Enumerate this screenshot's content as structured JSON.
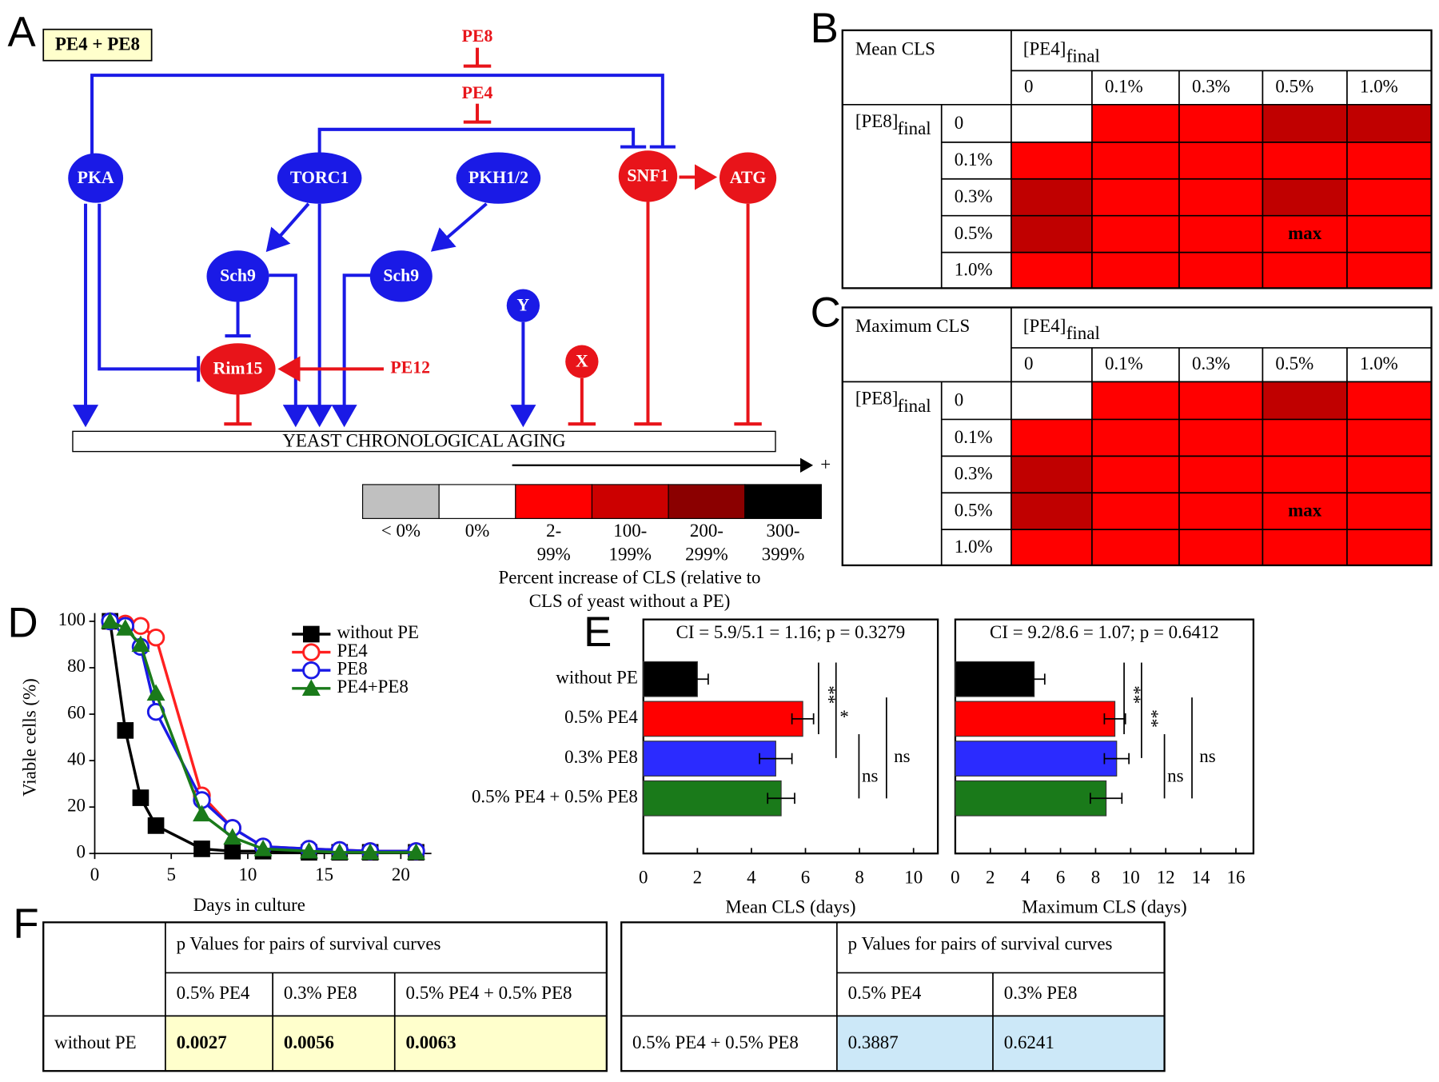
{
  "panel_labels": [
    "A",
    "B",
    "C",
    "D",
    "E",
    "F"
  ],
  "diagram": {
    "tag": "PE4 + PE8",
    "nodes": [
      "PKA",
      "TORC1",
      "PKH1/2",
      "SNF1",
      "ATG",
      "Sch9",
      "Sch9",
      "Y",
      "X",
      "Rim15"
    ],
    "compounds": [
      "PE8",
      "PE4",
      "PE12"
    ],
    "outcome": "YEAST CHRONOLOGICAL AGING",
    "direction": "+"
  },
  "scale": {
    "labels": [
      [
        "< 0%"
      ],
      [
        "0%"
      ],
      [
        "2-",
        "99%"
      ],
      [
        "100-",
        "199%"
      ],
      [
        "200-",
        "299%"
      ],
      [
        "300-",
        "399%"
      ]
    ],
    "colors": [
      "#c0c0c0",
      "#ffffff",
      "#ff0000",
      "#cc0000",
      "#8b0000",
      "#000000"
    ],
    "caption": [
      "Percent increase of CLS (relative to",
      "CLS of yeast without a PE)"
    ]
  },
  "heatmaps": [
    {
      "title": "Mean CLS",
      "col_header": "[PE4]",
      "row_header": "[PE8]",
      "subscript": "final",
      "columns": [
        "0",
        "0.1%",
        "0.3%",
        "0.5%",
        "1.0%"
      ],
      "rows": [
        "0",
        "0.1%",
        "0.3%",
        "0.5%",
        "1.0%"
      ],
      "cells": [
        [
          "#ffffff",
          "#ff0000",
          "#ff0000",
          "#c00000",
          "#c00000"
        ],
        [
          "#ff0000",
          "#ff0000",
          "#ff0000",
          "#ff0000",
          "#ff0000"
        ],
        [
          "#c00000",
          "#ff0000",
          "#ff0000",
          "#c00000",
          "#ff0000"
        ],
        [
          "#c00000",
          "#ff0000",
          "#ff0000",
          {
            "color": "#ff0000",
            "label": "max"
          },
          "#ff0000"
        ],
        [
          "#ff0000",
          "#ff0000",
          "#ff0000",
          "#ff0000",
          "#ff0000"
        ]
      ]
    },
    {
      "title": "Maximum CLS",
      "col_header": "[PE4]",
      "row_header": "[PE8]",
      "subscript": "final",
      "columns": [
        "0",
        "0.1%",
        "0.3%",
        "0.5%",
        "1.0%"
      ],
      "rows": [
        "0",
        "0.1%",
        "0.3%",
        "0.5%",
        "1.0%"
      ],
      "cells": [
        [
          "#ffffff",
          "#ff0000",
          "#ff0000",
          "#c00000",
          "#ff0000"
        ],
        [
          "#ff0000",
          "#ff0000",
          "#ff0000",
          "#ff0000",
          "#ff0000"
        ],
        [
          "#c00000",
          "#ff0000",
          "#ff0000",
          "#ff0000",
          "#ff0000"
        ],
        [
          "#c00000",
          "#ff0000",
          "#ff0000",
          {
            "color": "#ff0000",
            "label": "max"
          },
          "#ff0000"
        ],
        [
          "#ff0000",
          "#ff0000",
          "#ff0000",
          "#ff0000",
          "#ff0000"
        ]
      ]
    }
  ],
  "chart_data": [
    {
      "type": "line",
      "xlabel": "Days in culture",
      "ylabel": "Viable cells (%)",
      "x": [
        1,
        2,
        3,
        4,
        7,
        9,
        11,
        14,
        16,
        18,
        21
      ],
      "series": [
        {
          "name": "without PE",
          "color": "#000000",
          "marker": "square",
          "values": [
            100,
            53,
            24,
            12,
            2,
            1,
            1,
            0.5,
            0.5,
            0.5,
            0.5
          ]
        },
        {
          "name": "PE4",
          "color": "#ff2020",
          "marker": "open-circle",
          "values": [
            100,
            99,
            98,
            93,
            25,
            11,
            3,
            2,
            1.5,
            1,
            1
          ]
        },
        {
          "name": "PE8",
          "color": "#1a1ae6",
          "marker": "open-circle",
          "values": [
            100,
            98,
            89,
            61,
            23,
            11,
            3,
            2,
            1.5,
            1,
            1
          ]
        },
        {
          "name": "PE4+PE8",
          "color": "#1a7a1a",
          "marker": "triangle",
          "values": [
            100,
            97,
            90,
            69,
            17,
            7,
            2,
            1,
            0.5,
            0.5,
            0.5
          ]
        }
      ],
      "xlim": [
        0,
        22
      ],
      "xticks": [
        0,
        5,
        10,
        15,
        20
      ],
      "ylim": [
        0,
        100
      ],
      "yticks": [
        0,
        20,
        40,
        60,
        80,
        100
      ],
      "legend": "upper right"
    },
    {
      "type": "barh",
      "title": "CI = 5.9/5.1 = 1.16; p = 0.3279",
      "xlabel": "Mean CLS (days)",
      "categories": [
        "without PE",
        "0.5% PE4",
        "0.3% PE8",
        "0.5% PE4 + 0.5% PE8"
      ],
      "values": [
        2.0,
        5.9,
        4.9,
        5.1
      ],
      "errors": [
        0.4,
        0.4,
        0.6,
        0.5
      ],
      "colors": [
        "#000000",
        "#ff0000",
        "#2b2bff",
        "#1a7a1a"
      ],
      "xlim": [
        0,
        10.9
      ],
      "xticks": [
        0,
        2,
        4,
        6,
        8,
        10
      ],
      "annotations": [
        "**",
        "*",
        "ns",
        "ns"
      ]
    },
    {
      "type": "barh",
      "title": "CI = 9.2/8.6 = 1.07; p = 0.6412",
      "xlabel": "Maximum CLS (days)",
      "values": [
        4.5,
        9.1,
        9.2,
        8.6
      ],
      "errors": [
        0.6,
        0.6,
        0.7,
        0.9
      ],
      "colors": [
        "#000000",
        "#ff0000",
        "#2b2bff",
        "#1a7a1a"
      ],
      "xlim": [
        0,
        17
      ],
      "xticks": [
        0,
        2,
        4,
        6,
        8,
        10,
        12,
        14,
        16
      ],
      "annotations": [
        "**",
        "**",
        "ns",
        "ns"
      ]
    }
  ],
  "tables": [
    {
      "header": "p Values for pairs of survival curves",
      "columns": [
        "0.5% PE4",
        "0.3% PE8",
        "0.5% PE4 + 0.5% PE8"
      ],
      "row_label": "without PE",
      "values": [
        "0.0027",
        "0.0056",
        "0.0063"
      ],
      "fill": "#ffffcc",
      "value_color": "#e8141a"
    },
    {
      "header": "p Values for pairs of survival curves",
      "columns": [
        "0.5% PE4",
        "0.3% PE8"
      ],
      "row_label": "0.5% PE4 + 0.5% PE8",
      "values": [
        "0.3887",
        "0.6241"
      ],
      "fill": "#cce8f8",
      "value_color": "#000000"
    }
  ]
}
